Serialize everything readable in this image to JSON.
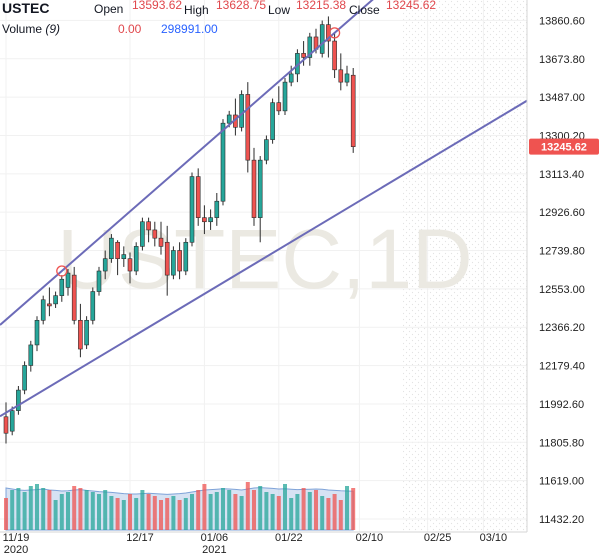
{
  "header": {
    "symbol": "USTEC",
    "open_label": "Open",
    "open": "13593.62",
    "high_label": "High",
    "high": "13628.75",
    "low_label": "Low",
    "low": "13215.38",
    "close_label": "Close",
    "close": "13245.62",
    "volume_label": "Volume",
    "volume_period": "(9)",
    "volume_value": "0.00",
    "volume_ma": "298991.00"
  },
  "watermark": "USTEC,1D",
  "price_tag": "13245.62",
  "colors": {
    "up": "#26a69a",
    "down": "#ef5350",
    "wick": "#2b2b2b",
    "trend": "#6c6bb8",
    "tag": "#ef5350",
    "volume_area": "#b5cbea"
  },
  "chart_data": {
    "type": "candlestick",
    "ylim": [
      11432.2,
      13960
    ],
    "y_ticks": [
      "13860.60",
      "13673.80",
      "13487.00",
      "13300.20",
      "13113.40",
      "12926.60",
      "12739.80",
      "12553.00",
      "12366.20",
      "12179.40",
      "11992.60",
      "11805.80",
      "11619.00",
      "11432.20"
    ],
    "x_ticks": [
      {
        "label": "11/19",
        "sub": "2020",
        "index": 0
      },
      {
        "label": "12/17",
        "sub": "",
        "index": 20
      },
      {
        "label": "01/06",
        "sub": "2021",
        "index": 32
      },
      {
        "label": "01/22",
        "sub": "",
        "index": 44
      },
      {
        "label": "02/10",
        "sub": "",
        "index": 57
      },
      {
        "label": "02/25",
        "sub": "",
        "index": 68
      },
      {
        "label": "03/10",
        "sub": "",
        "index": 77
      }
    ],
    "ohlc": [
      [
        11930,
        12000,
        11800,
        11850
      ],
      [
        11860,
        11980,
        11840,
        11960
      ],
      [
        11960,
        12080,
        11940,
        12060
      ],
      [
        12060,
        12200,
        12040,
        12180
      ],
      [
        12180,
        12300,
        12150,
        12280
      ],
      [
        12280,
        12420,
        12250,
        12400
      ],
      [
        12400,
        12520,
        12380,
        12500
      ],
      [
        12480,
        12560,
        12420,
        12470
      ],
      [
        12480,
        12540,
        12460,
        12520
      ],
      [
        12520,
        12620,
        12490,
        12600
      ],
      [
        12560,
        12650,
        12520,
        12630
      ],
      [
        12620,
        12660,
        12380,
        12400
      ],
      [
        12400,
        12480,
        12220,
        12260
      ],
      [
        12280,
        12420,
        12260,
        12400
      ],
      [
        12400,
        12560,
        12380,
        12540
      ],
      [
        12540,
        12660,
        12520,
        12640
      ],
      [
        12640,
        12740,
        12600,
        12700
      ],
      [
        12700,
        12820,
        12680,
        12800
      ],
      [
        12780,
        12790,
        12620,
        12700
      ],
      [
        12700,
        12760,
        12660,
        12720
      ],
      [
        12700,
        12730,
        12580,
        12640
      ],
      [
        12640,
        12780,
        12620,
        12760
      ],
      [
        12760,
        12900,
        12740,
        12880
      ],
      [
        12880,
        12900,
        12780,
        12840
      ],
      [
        12840,
        12880,
        12760,
        12800
      ],
      [
        12800,
        12880,
        12720,
        12760
      ],
      [
        12780,
        12860,
        12520,
        12620
      ],
      [
        12620,
        12760,
        12600,
        12740
      ],
      [
        12740,
        12780,
        12600,
        12640
      ],
      [
        12640,
        12800,
        12620,
        12780
      ],
      [
        12780,
        13120,
        12760,
        13100
      ],
      [
        13100,
        13140,
        12860,
        12900
      ],
      [
        12900,
        12960,
        12820,
        12880
      ],
      [
        12880,
        12940,
        12840,
        12900
      ],
      [
        12900,
        13020,
        12860,
        12980
      ],
      [
        12980,
        13380,
        12960,
        13360
      ],
      [
        13360,
        13420,
        13340,
        13400
      ],
      [
        13400,
        13480,
        13300,
        13340
      ],
      [
        13340,
        13520,
        13320,
        13500
      ],
      [
        13500,
        13560,
        13120,
        13180
      ],
      [
        13180,
        13240,
        12860,
        12900
      ],
      [
        12900,
        13200,
        12780,
        13180
      ],
      [
        13180,
        13300,
        13160,
        13280
      ],
      [
        13280,
        13480,
        13260,
        13460
      ],
      [
        13460,
        13540,
        13400,
        13420
      ],
      [
        13420,
        13580,
        13400,
        13560
      ],
      [
        13560,
        13640,
        13540,
        13600
      ],
      [
        13600,
        13720,
        13560,
        13700
      ],
      [
        13700,
        13760,
        13640,
        13680
      ],
      [
        13680,
        13800,
        13640,
        13780
      ],
      [
        13780,
        13820,
        13700,
        13720
      ],
      [
        13700,
        13860,
        13680,
        13840
      ],
      [
        13840,
        13880,
        13680,
        13760
      ],
      [
        13760,
        13800,
        13580,
        13620
      ],
      [
        13620,
        13700,
        13520,
        13560
      ],
      [
        13560,
        13640,
        13540,
        13600
      ],
      [
        13593.62,
        13628.75,
        13215.38,
        13245.62
      ]
    ],
    "volume": [
      160,
      200,
      210,
      190,
      220,
      230,
      210,
      200,
      150,
      180,
      190,
      220,
      210,
      200,
      190,
      180,
      200,
      170,
      160,
      150,
      180,
      160,
      200,
      180,
      170,
      150,
      160,
      170,
      150,
      160,
      180,
      200,
      230,
      180,
      190,
      210,
      200,
      180,
      170,
      240,
      200,
      220,
      190,
      180,
      170,
      230,
      160,
      180,
      210,
      190,
      200,
      170,
      160,
      180,
      150,
      220,
      210
    ],
    "volume_ma": [
      210,
      205,
      200,
      198,
      200,
      202,
      205,
      200,
      198,
      195,
      196,
      200,
      202,
      198,
      195,
      192,
      190,
      188,
      185,
      182,
      180,
      180,
      182,
      184,
      182,
      180,
      178,
      180,
      182,
      185,
      190,
      195,
      200,
      202,
      204,
      206,
      205,
      203,
      200,
      205,
      210,
      212,
      210,
      208,
      205,
      206,
      204,
      202,
      203,
      204,
      205,
      204,
      200,
      198,
      196,
      195,
      194
    ]
  }
}
